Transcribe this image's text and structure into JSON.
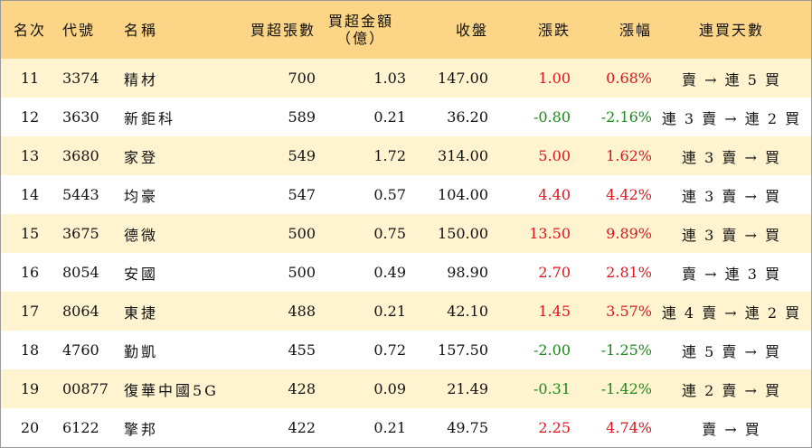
{
  "headers": {
    "rank": "名次",
    "code": "代號",
    "name": "名稱",
    "shares": "買超張數",
    "amount_line1": "買超金額",
    "amount_line2": "（億）",
    "close": "收盤",
    "change": "漲跌",
    "pct": "漲幅",
    "days": "連買天數"
  },
  "colors": {
    "header_bg": "#fcd587",
    "alt_row_bg": "#fff3d0",
    "up": "#e0141e",
    "down": "#1a8a1a"
  },
  "rows": [
    {
      "rank": "11",
      "code": "3374",
      "name": "精材",
      "shares": "700",
      "amount": "1.03",
      "close": "147.00",
      "change": "1.00",
      "pct": "0.68%",
      "dir": "up",
      "days": "賣 → 連 5 買"
    },
    {
      "rank": "12",
      "code": "3630",
      "name": "新鉅科",
      "shares": "589",
      "amount": "0.21",
      "close": "36.20",
      "change": "-0.80",
      "pct": "-2.16%",
      "dir": "down",
      "days": "連 3 賣 → 連 2 買"
    },
    {
      "rank": "13",
      "code": "3680",
      "name": "家登",
      "shares": "549",
      "amount": "1.72",
      "close": "314.00",
      "change": "5.00",
      "pct": "1.62%",
      "dir": "up",
      "days": "連 3 賣 → 買"
    },
    {
      "rank": "14",
      "code": "5443",
      "name": "均豪",
      "shares": "547",
      "amount": "0.57",
      "close": "104.00",
      "change": "4.40",
      "pct": "4.42%",
      "dir": "up",
      "days": "連 3 賣 → 買"
    },
    {
      "rank": "15",
      "code": "3675",
      "name": "德微",
      "shares": "500",
      "amount": "0.75",
      "close": "150.00",
      "change": "13.50",
      "pct": "9.89%",
      "dir": "up",
      "days": "連 3 賣 → 買"
    },
    {
      "rank": "16",
      "code": "8054",
      "name": "安國",
      "shares": "500",
      "amount": "0.49",
      "close": "98.90",
      "change": "2.70",
      "pct": "2.81%",
      "dir": "up",
      "days": "賣 → 連 3 買"
    },
    {
      "rank": "17",
      "code": "8064",
      "name": "東捷",
      "shares": "488",
      "amount": "0.21",
      "close": "42.10",
      "change": "1.45",
      "pct": "3.57%",
      "dir": "up",
      "days": "連 4 賣 → 連 2 買"
    },
    {
      "rank": "18",
      "code": "4760",
      "name": "勤凱",
      "shares": "455",
      "amount": "0.72",
      "close": "157.50",
      "change": "-2.00",
      "pct": "-1.25%",
      "dir": "down",
      "days": "連 5 賣 → 買"
    },
    {
      "rank": "19",
      "code": "00877",
      "name": "復華中國5G",
      "shares": "428",
      "amount": "0.09",
      "close": "21.49",
      "change": "-0.31",
      "pct": "-1.42%",
      "dir": "down",
      "days": "連 2 賣 → 買"
    },
    {
      "rank": "20",
      "code": "6122",
      "name": "擎邦",
      "shares": "422",
      "amount": "0.21",
      "close": "49.75",
      "change": "2.25",
      "pct": "4.74%",
      "dir": "up",
      "days": "賣 → 買"
    }
  ]
}
